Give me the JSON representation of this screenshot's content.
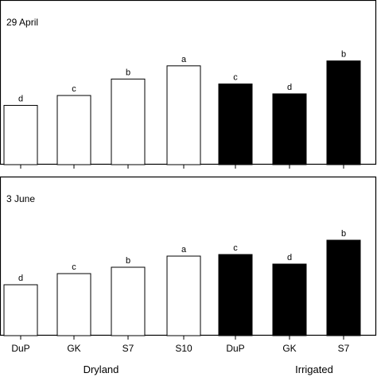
{
  "chart_data": [
    {
      "type": "bar",
      "title": "29 April",
      "categories": [
        "DuP",
        "GK",
        "S7",
        "S10",
        "DuP",
        "GK",
        "S7"
      ],
      "groups": [
        {
          "name": "Dryland",
          "categories": [
            "DuP",
            "GK",
            "S7",
            "S10"
          ],
          "fill": "#ffffff"
        },
        {
          "name": "Irrigated",
          "categories": [
            "DuP",
            "GK",
            "S7"
          ],
          "fill": "#000000"
        }
      ],
      "values": [
        36,
        42,
        52,
        60,
        49,
        43,
        63
      ],
      "labels": [
        "d",
        "c",
        "b",
        "a",
        "c",
        "d",
        "b"
      ],
      "ylim": [
        0,
        100
      ],
      "grid": false
    },
    {
      "type": "bar",
      "title": "3 June",
      "categories": [
        "DuP",
        "GK",
        "S7",
        "S10",
        "DuP",
        "GK",
        "S7"
      ],
      "groups": [
        {
          "name": "Dryland",
          "categories": [
            "DuP",
            "GK",
            "S7",
            "S10"
          ],
          "fill": "#ffffff"
        },
        {
          "name": "Irrigated",
          "categories": [
            "DuP",
            "GK",
            "S7"
          ],
          "fill": "#000000"
        }
      ],
      "values": [
        32,
        39,
        43,
        50,
        51,
        45,
        60
      ],
      "labels": [
        "d",
        "c",
        "b",
        "a",
        "c",
        "d",
        "b"
      ],
      "ylim": [
        0,
        100
      ],
      "grid": false
    }
  ],
  "colors": {
    "dryland_fill": "#ffffff",
    "irrigated_fill": "#000000",
    "axis": "#000000"
  }
}
